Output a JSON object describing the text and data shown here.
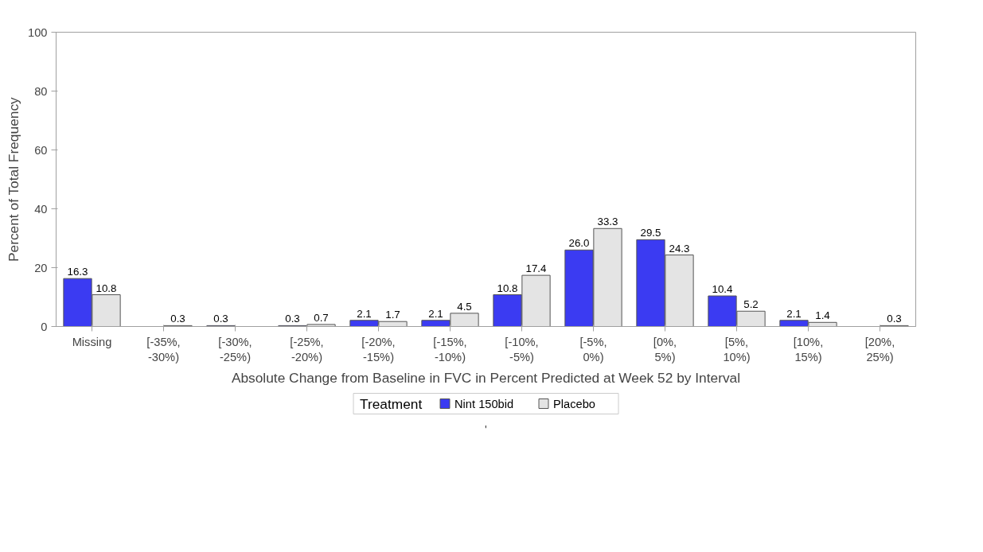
{
  "chart_data": {
    "type": "bar",
    "xlabel": "Absolute Change from Baseline in FVC in Percent Predicted at Week 52 by Interval",
    "ylabel": "Percent of Total Frequency",
    "legend_title": "Treatment",
    "categories": [
      "Missing",
      "[-35%, -30%)",
      "[-30%, -25%)",
      "[-25%, -20%)",
      "[-20%, -15%)",
      "[-15%, -10%)",
      "[-10%, -5%)",
      "[-5%, 0%)",
      "[0%, 5%)",
      "[5%, 10%)",
      "[10%, 15%)",
      "[20%, 25%)"
    ],
    "series": [
      {
        "name": "Nint 150bid",
        "color": "#3b3bf2",
        "values": [
          16.3,
          null,
          0.3,
          0.3,
          2.1,
          2.1,
          10.8,
          26.0,
          29.5,
          10.4,
          2.1,
          null
        ],
        "value_labels": [
          "16.3",
          null,
          "0.3",
          "0.3",
          "2.1",
          "2.1",
          "10.8",
          "26.0",
          "29.5",
          "10.4",
          "2.1",
          null
        ]
      },
      {
        "name": "Placebo",
        "color": "#e4e4e4",
        "values": [
          10.8,
          0.3,
          null,
          0.7,
          1.7,
          4.5,
          17.4,
          33.3,
          24.3,
          5.2,
          1.4,
          0.3
        ],
        "value_labels": [
          "10.8",
          "0.3",
          null,
          "0.7",
          "1.7",
          "4.5",
          "17.4",
          "33.3",
          "24.3",
          "5.2",
          "1.4",
          "0.3"
        ]
      }
    ],
    "ylim": [
      0,
      100
    ],
    "yticks": [
      0,
      20,
      40,
      60,
      80,
      100
    ],
    "legend": "bottom",
    "annotations": [
      "'"
    ]
  }
}
